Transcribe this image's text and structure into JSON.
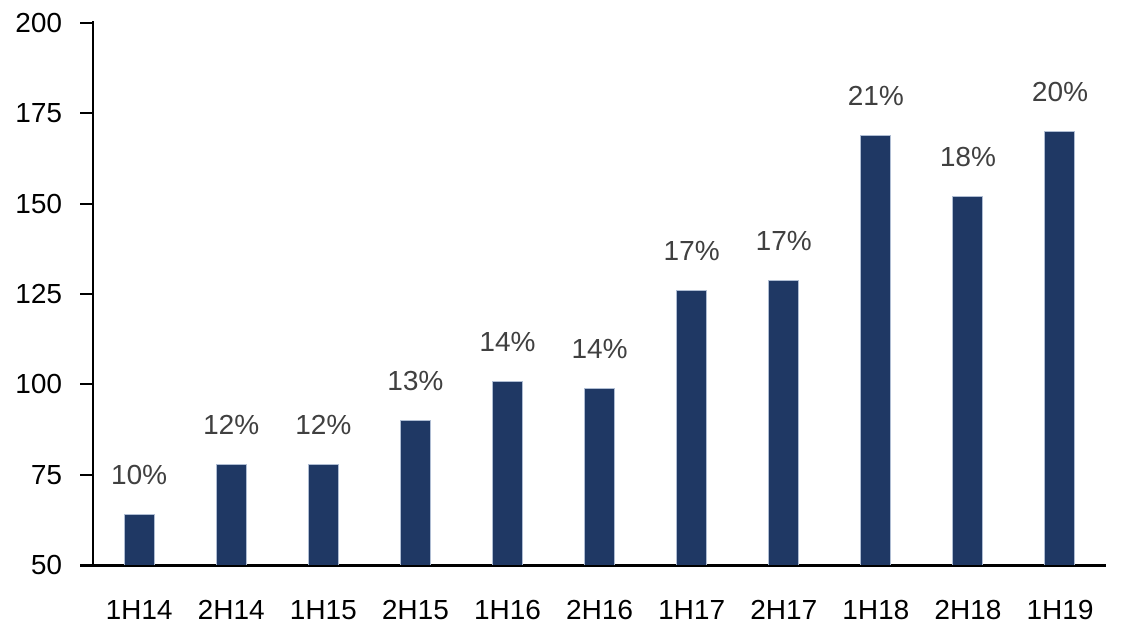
{
  "chart_data": {
    "type": "bar",
    "title": "",
    "xlabel": "",
    "ylabel": "",
    "categories": [
      "1H14",
      "2H14",
      "1H15",
      "2H15",
      "1H16",
      "2H16",
      "1H17",
      "2H17",
      "1H18",
      "2H18",
      "1H19"
    ],
    "values": [
      64,
      78,
      78,
      90,
      101,
      99,
      126,
      129,
      169,
      152,
      170
    ],
    "bar_labels": [
      "10%",
      "12%",
      "12%",
      "13%",
      "14%",
      "14%",
      "17%",
      "17%",
      "21%",
      "18%",
      "20%"
    ],
    "ylim": [
      50,
      200
    ],
    "yticks": [
      50,
      75,
      100,
      125,
      150,
      175,
      200
    ],
    "grid": false,
    "legend": false,
    "colors": {
      "bar_fill": "#1F3864",
      "bar_border": "#AFBDD3",
      "data_label": "#404040",
      "axis_text": "#000000",
      "axis_line": "#000000"
    }
  }
}
